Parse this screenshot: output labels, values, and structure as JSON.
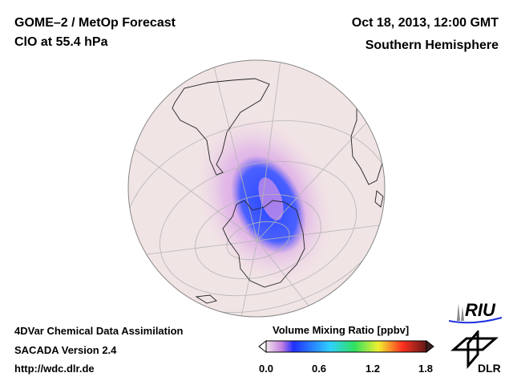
{
  "header": {
    "title": "GOME–2 / MetOp Forecast",
    "subtitle": "ClO at 55.4 hPa",
    "date": "Oct 18, 2013, 12:00 GMT",
    "region": "Southern Hemisphere"
  },
  "footer": {
    "line1": "4DVar Chemical Data Assimilation",
    "line2": "SACADA Version 2.4",
    "line3": "http://wdc.dlr.de"
  },
  "colorbar": {
    "title": "Volume Mixing Ratio [ppbv]",
    "ticks": [
      "0.0",
      "0.6",
      "1.2",
      "1.8"
    ],
    "range": [
      0.0,
      1.8
    ],
    "colors": [
      "#f3e6ea",
      "#c07de0",
      "#2030ff",
      "#30d0ff",
      "#30e060",
      "#f0f030",
      "#ff3020",
      "#601818"
    ]
  },
  "logos": {
    "riu": "RIU",
    "dlr": "DLR"
  }
}
